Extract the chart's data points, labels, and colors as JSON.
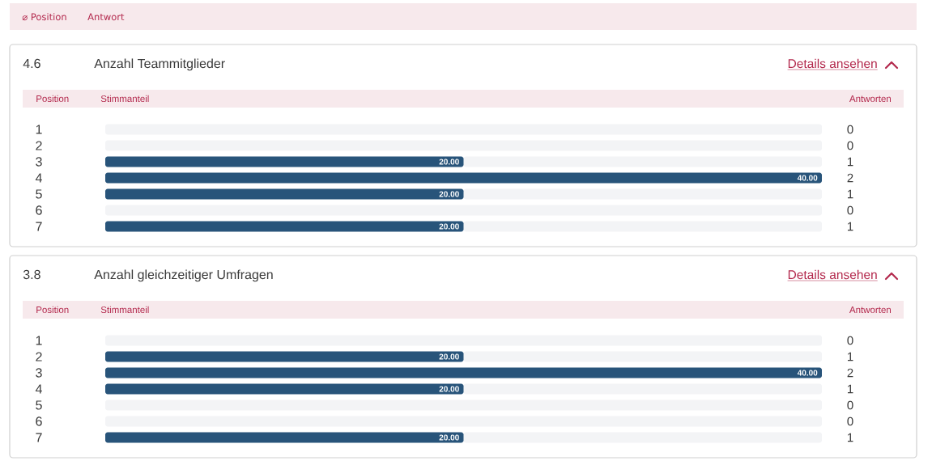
{
  "chart_data": [
    {
      "type": "other",
      "annotations": [
        "⌀ Position",
        "Antwort"
      ]
    },
    {
      "type": "bar",
      "orientation": "horizontal",
      "stacked": true,
      "title": "Anzahl Teammitglieder",
      "annotations": [
        "4.6",
        "Details ansehen"
      ],
      "ylabel": "Position",
      "xlabel": "Stimmanteil",
      "y2label": "Antworten",
      "categories": [
        "1",
        "2",
        "3",
        "4",
        "5",
        "6",
        "7"
      ],
      "y2_categories": [
        "0",
        "0",
        "1",
        "2",
        "1",
        "0",
        "1"
      ],
      "series": [
        {
          "color": "#28547a",
          "values": [
            0,
            0,
            20,
            40,
            20,
            0,
            20
          ],
          "value_labels": [
            null,
            null,
            "20.00",
            "40.00",
            "20.00",
            null,
            "20.00"
          ]
        },
        {
          "color": "#f3f4f6",
          "values": [
            40,
            40,
            20,
            0,
            20,
            40,
            20
          ]
        }
      ]
    },
    {
      "type": "bar",
      "orientation": "horizontal",
      "stacked": true,
      "title": "Anzahl gleichzeitiger Umfragen",
      "annotations": [
        "3.8",
        "Details ansehen"
      ],
      "ylabel": "Position",
      "xlabel": "Stimmanteil",
      "y2label": "Antworten",
      "categories": [
        "1",
        "2",
        "3",
        "4",
        "5",
        "6",
        "7"
      ],
      "y2_categories": [
        "0",
        "1",
        "2",
        "1",
        "0",
        "0",
        "1"
      ],
      "series": [
        {
          "color": "#28547a",
          "values": [
            0,
            20,
            40,
            20,
            0,
            0,
            20
          ],
          "value_labels": [
            null,
            "20.00",
            "40.00",
            "20.00",
            null,
            null,
            "20.00"
          ]
        },
        {
          "color": "#f3f4f6",
          "values": [
            40,
            20,
            0,
            20,
            40,
            40,
            20
          ]
        }
      ]
    }
  ]
}
